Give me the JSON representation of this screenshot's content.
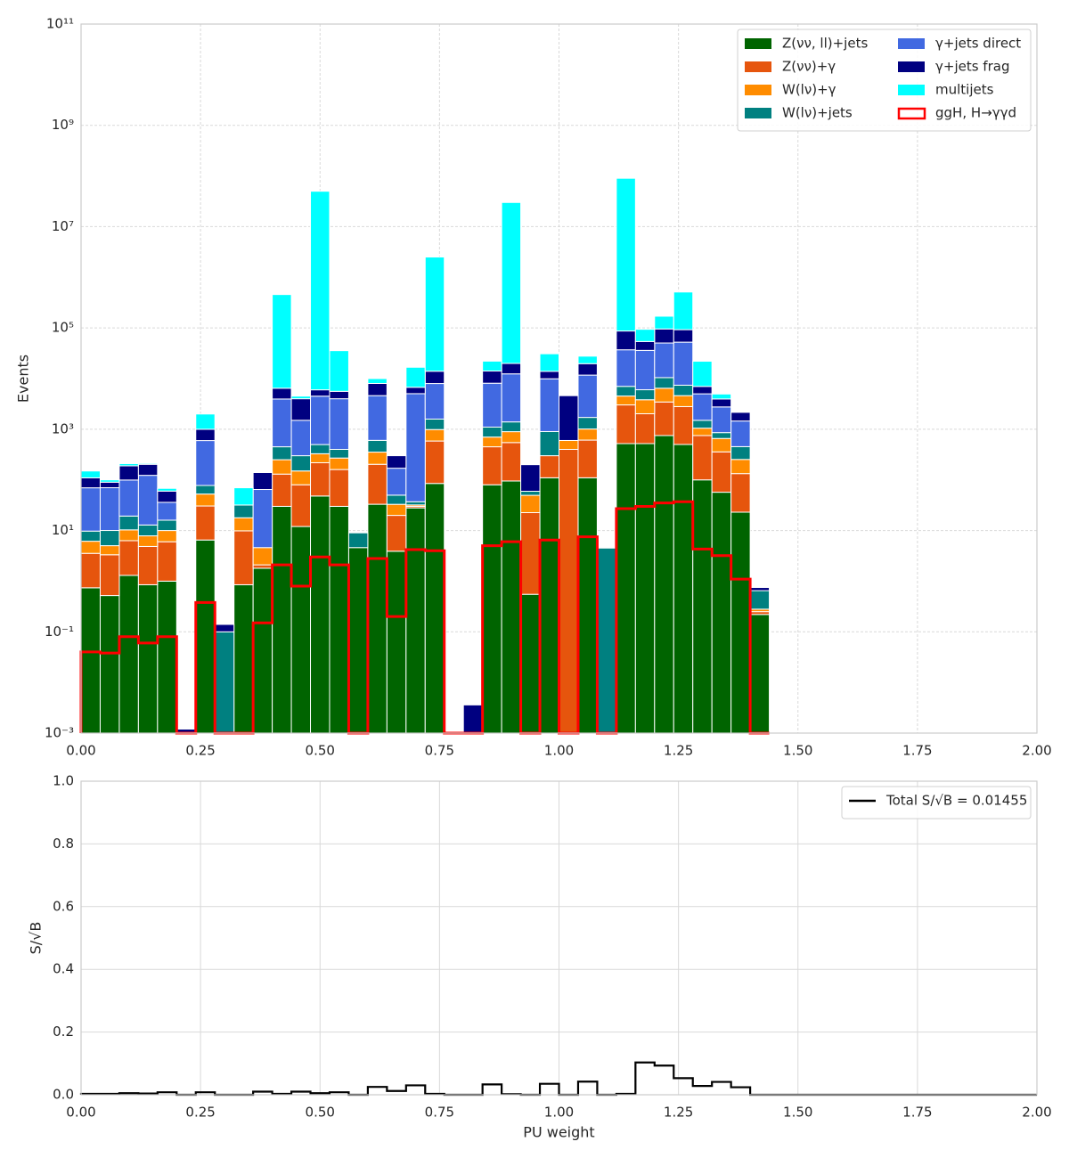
{
  "chart_data": [
    {
      "type": "histogram",
      "ylabel": "Events",
      "yscale": "log",
      "stacked": true,
      "grid": true,
      "legend": "upper right",
      "legend_columns": 2,
      "xlim": [
        0,
        2
      ],
      "xticks": [
        {
          "value": 0,
          "label": "0.00"
        },
        {
          "value": 0.25,
          "label": "0.25"
        },
        {
          "value": 0.5,
          "label": "0.50"
        },
        {
          "value": 0.75,
          "label": "0.75"
        },
        {
          "value": 1,
          "label": "1.00"
        },
        {
          "value": 1.25,
          "label": "1.25"
        },
        {
          "value": 1.5,
          "label": "1.50"
        },
        {
          "value": 1.75,
          "label": "1.75"
        },
        {
          "value": 2,
          "label": "2.00"
        }
      ],
      "ylim": [
        0.001,
        100000000000
      ],
      "yticks": [
        {
          "value": 0.001,
          "label": "10⁻³"
        },
        {
          "value": 0.1,
          "label": "10⁻¹"
        },
        {
          "value": 10,
          "label": "10¹"
        },
        {
          "value": 1000,
          "label": "10³"
        },
        {
          "value": 100000,
          "label": "10⁵"
        },
        {
          "value": 10000000,
          "label": "10⁷"
        },
        {
          "value": 1000000000,
          "label": "10⁹"
        },
        {
          "value": 100000000000,
          "label": "10¹¹"
        }
      ],
      "bins": [
        0,
        0.04,
        0.08,
        0.12,
        0.16,
        0.2,
        0.24,
        0.28,
        0.32,
        0.36,
        0.4,
        0.44,
        0.48,
        0.52,
        0.56,
        0.6,
        0.64,
        0.68,
        0.72,
        0.76,
        0.8,
        0.84,
        0.88,
        0.92,
        0.96,
        1,
        1.04,
        1.08,
        1.12,
        1.16,
        1.2,
        1.24,
        1.28,
        1.32,
        1.36,
        1.4,
        1.44
      ],
      "series": [
        {
          "name": "Z(νν, ll)+jets",
          "color": "#006400",
          "values": [
            0.74,
            0.52,
            1.3,
            0.85,
            1,
            0,
            6.5,
            0,
            0.85,
            1.8,
            30,
            12,
            48,
            30,
            4.6,
            33,
            3.9,
            28,
            85,
            0,
            0,
            80,
            95,
            0.55,
            110,
            0,
            110,
            0,
            520,
            520,
            750,
            500,
            100,
            57,
            23,
            0.22
          ]
        },
        {
          "name": "Z(νν)+γ",
          "color": "#e6550d",
          "values": [
            2.8,
            2.8,
            5,
            4,
            5,
            0,
            24,
            0,
            9,
            0.3,
            100,
            68,
            170,
            130,
            0,
            170,
            16,
            2,
            500,
            0,
            0,
            370,
            450,
            22,
            190,
            400,
            500,
            0,
            2500,
            1500,
            2700,
            2300,
            650,
            300,
            110,
            0.03
          ]
        },
        {
          "name": "W(lν)+γ",
          "color": "#ff8c00",
          "values": [
            2.6,
            1.7,
            4,
            3,
            4,
            0,
            22,
            0,
            8,
            2.5,
            120,
            70,
            110,
            110,
            0,
            150,
            13,
            2,
            400,
            0,
            0,
            250,
            350,
            27,
            0,
            200,
            400,
            0,
            1500,
            1800,
            3000,
            1800,
            300,
            300,
            120,
            0.03
          ]
        },
        {
          "name": "W(lν)+jets",
          "color": "#008080",
          "values": [
            3.6,
            5,
            9,
            5,
            6,
            0,
            25,
            0.1,
            14,
            0,
            200,
            150,
            170,
            130,
            4.4,
            250,
            17,
            5,
            600,
            0,
            0,
            400,
            500,
            10,
            600,
            0,
            700,
            4.5,
            2500,
            2200,
            4000,
            2800,
            450,
            200,
            200,
            0.37
          ]
        },
        {
          "name": "γ+jets direct",
          "color": "#4169e1",
          "values": [
            60,
            60,
            80,
            110,
            20,
            0,
            520,
            0,
            0,
            60,
            3500,
            1200,
            4000,
            3600,
            0,
            4000,
            120,
            5000,
            6400,
            0,
            0,
            7000,
            11000,
            0,
            9000,
            0,
            10000,
            0,
            30000,
            30000,
            40000,
            45000,
            3500,
            1900,
            1000,
            0
          ]
        },
        {
          "name": "γ+jets frag",
          "color": "#000080",
          "values": [
            40,
            20,
            90,
            80,
            24,
            0.0012,
            400,
            0.04,
            0,
            75,
            2500,
            2500,
            1500,
            1600,
            0,
            3400,
            130,
            1700,
            6000,
            0,
            0.0036,
            6000,
            7500,
            140,
            4000,
            4000,
            8000,
            0,
            50000,
            18000,
            45000,
            40000,
            2000,
            1200,
            700,
            0.1
          ]
        },
        {
          "name": "multijets",
          "color": "#00ffff",
          "values": [
            40,
            10,
            20,
            10,
            8,
            0,
            1000,
            0,
            38,
            5,
            450000,
            500,
            50000000,
            30000,
            0,
            2000,
            0,
            10000,
            2500000,
            0,
            0,
            8000,
            30000000,
            0,
            17000,
            0,
            8000,
            0,
            90000000,
            40000,
            75000,
            420000,
            15000,
            1000,
            0,
            0
          ]
        },
        {
          "name": "ggH, H→γγd",
          "color": "#ff0000",
          "histtype": "step",
          "values": [
            0.04,
            0.038,
            0.08,
            0.06,
            0.08,
            0,
            0.38,
            0,
            0,
            0.15,
            2.1,
            0.8,
            3,
            2.1,
            0,
            2.8,
            0.2,
            4.2,
            4,
            0,
            0,
            5,
            6,
            0,
            6.5,
            0,
            7.5,
            0,
            27,
            30,
            35,
            37,
            4.3,
            3.2,
            1.1,
            0
          ]
        }
      ]
    },
    {
      "type": "histogram",
      "xlabel": "PU weight",
      "ylabel": "S/√B",
      "yscale": "linear",
      "grid": true,
      "legend": "upper right",
      "legend_columns": 1,
      "legend_text_color": "#800080",
      "xlim": [
        0,
        2
      ],
      "xticks": [
        {
          "value": 0,
          "label": "0.00"
        },
        {
          "value": 0.25,
          "label": "0.25"
        },
        {
          "value": 0.5,
          "label": "0.50"
        },
        {
          "value": 0.75,
          "label": "0.75"
        },
        {
          "value": 1,
          "label": "1.00"
        },
        {
          "value": 1.25,
          "label": "1.25"
        },
        {
          "value": 1.5,
          "label": "1.50"
        },
        {
          "value": 1.75,
          "label": "1.75"
        },
        {
          "value": 2,
          "label": "2.00"
        }
      ],
      "ylim": [
        0,
        1
      ],
      "yticks": [
        {
          "value": 0,
          "label": "0.0"
        },
        {
          "value": 0.2,
          "label": "0.2"
        },
        {
          "value": 0.4,
          "label": "0.4"
        },
        {
          "value": 0.6,
          "label": "0.6"
        },
        {
          "value": 0.8,
          "label": "0.8"
        },
        {
          "value": 1,
          "label": "1.0"
        }
      ],
      "bins": [
        0,
        0.04,
        0.08,
        0.12,
        0.16,
        0.2,
        0.24,
        0.28,
        0.32,
        0.36,
        0.4,
        0.44,
        0.48,
        0.52,
        0.56,
        0.6,
        0.64,
        0.68,
        0.72,
        0.76,
        0.8,
        0.84,
        0.88,
        0.92,
        0.96,
        1,
        1.04,
        1.08,
        1.12,
        1.16,
        1.2,
        1.24,
        1.28,
        1.32,
        1.36,
        1.4,
        1.44,
        1.48,
        1.52,
        1.56,
        1.6,
        1.64,
        1.68,
        1.72,
        1.76,
        1.8,
        1.84,
        1.88,
        1.92,
        1.96,
        2
      ],
      "series": [
        {
          "name": "Total S/√B = 0.01455",
          "color": "#000000",
          "histtype": "step",
          "values": [
            0.003,
            0.003,
            0.005,
            0.004,
            0.008,
            0,
            0.008,
            0,
            0,
            0.01,
            0.003,
            0.01,
            0.005,
            0.008,
            0,
            0.025,
            0.012,
            0.03,
            0.003,
            0,
            0,
            0.033,
            0.002,
            0,
            0.035,
            0,
            0.042,
            0,
            0.003,
            0.103,
            0.093,
            0.053,
            0.028,
            0.041,
            0.024,
            0,
            0,
            0,
            0,
            0,
            0,
            0,
            0,
            0,
            0,
            0,
            0,
            0,
            0,
            0
          ]
        }
      ]
    }
  ]
}
